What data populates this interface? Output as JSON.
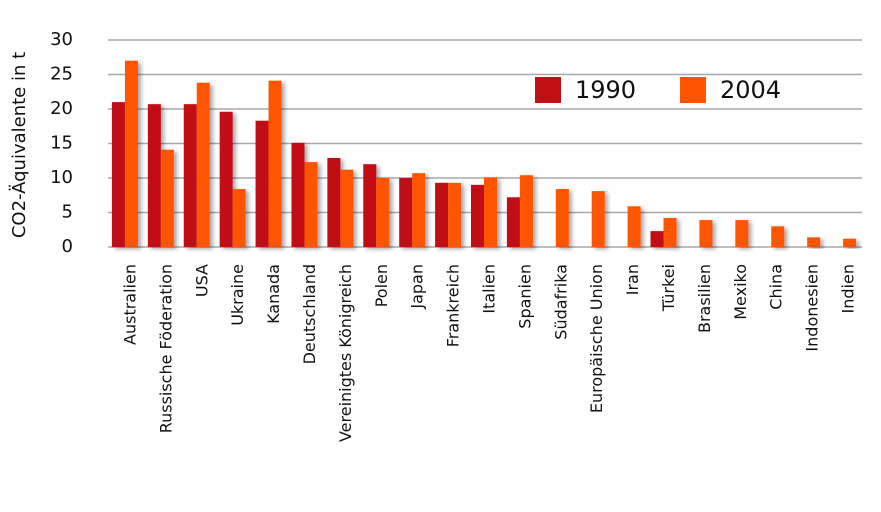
{
  "chart_data": {
    "type": "bar",
    "y_label": "CO2-Äquivalente in t",
    "categories": [
      "Australien",
      "Russische Föderation",
      "USA",
      "Ukraine",
      "Kanada",
      "Deutschland",
      "Vereinigtes Königreich",
      "Polen",
      "Japan",
      "Frankreich",
      "Italien",
      "Spanien",
      "Südafrika",
      "Europäische Union",
      "Iran",
      "Türkei",
      "Brasilien",
      "Mexiko",
      "China",
      "Indonesien",
      "Indien"
    ],
    "series": [
      {
        "name": "1990",
        "color": "#c20f14",
        "values": [
          21.0,
          20.7,
          20.7,
          19.6,
          18.3,
          15.1,
          12.9,
          12.0,
          10.0,
          9.3,
          9.0,
          7.2,
          null,
          null,
          null,
          2.3,
          null,
          null,
          null,
          null,
          null
        ]
      },
      {
        "name": "2004",
        "color": "#ff5500",
        "values": [
          27.0,
          14.1,
          23.8,
          8.4,
          24.1,
          12.3,
          11.2,
          10.0,
          10.7,
          9.3,
          10.1,
          10.4,
          8.4,
          8.1,
          5.9,
          4.2,
          3.9,
          3.9,
          3.0,
          1.4,
          1.2
        ]
      }
    ],
    "ylim": [
      0,
      30
    ],
    "yticks": [
      0,
      5,
      10,
      15,
      20,
      25,
      30
    ],
    "grid": true
  }
}
